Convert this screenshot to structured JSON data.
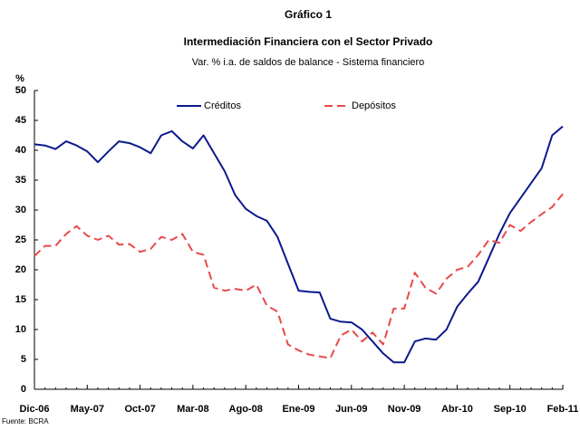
{
  "chart_data": {
    "type": "line",
    "title": "Gráfico 1",
    "subtitle": "Intermediación Financiera con el Sector Privado",
    "note": "Var. % i.a. de saldos de balance - Sistema financiero",
    "y_label": "%",
    "source": "Fuente: BCRA",
    "categories": [
      "Dic-06",
      null,
      null,
      null,
      null,
      "May-07",
      null,
      null,
      null,
      null,
      "Oct-07",
      null,
      null,
      null,
      null,
      "Mar-08",
      null,
      null,
      null,
      null,
      "Ago-08",
      null,
      null,
      null,
      null,
      "Ene-09",
      null,
      null,
      null,
      null,
      "Jun-09",
      null,
      null,
      null,
      null,
      "Nov-09",
      null,
      null,
      null,
      null,
      "Abr-10",
      null,
      null,
      null,
      null,
      "Sep-10",
      null,
      null,
      null,
      null,
      "Feb-11"
    ],
    "series": [
      {
        "name": "Créditos",
        "color": "#0a1a8c",
        "style": "solid",
        "values": [
          41,
          40.8,
          40.2,
          41.5,
          40.8,
          39.8,
          38,
          39.8,
          41.5,
          41.2,
          40.5,
          39.5,
          42.5,
          43.2,
          41.5,
          40.3,
          42.5,
          39.5,
          36.5,
          32.5,
          30.2,
          29,
          28.2,
          25.5,
          21,
          16.5,
          16.3,
          16.2,
          11.8,
          11.3,
          11.2,
          10,
          8,
          6,
          4.5,
          4.5,
          8,
          8.5,
          8.3,
          10,
          13.8,
          16,
          18,
          22,
          26,
          29.5,
          32,
          34.5,
          37,
          42.5,
          44
        ]
      },
      {
        "name": "Depósitos",
        "color": "#e8494a",
        "style": "dashed",
        "values": [
          22.3,
          24,
          24,
          26,
          27.3,
          25.7,
          25,
          25.7,
          24.2,
          24.3,
          23,
          23.5,
          25.5,
          25,
          26,
          23,
          22.5,
          17,
          16.5,
          16.8,
          16.5,
          17.5,
          14,
          13,
          7.5,
          6.5,
          5.8,
          5.5,
          5.2,
          9,
          10,
          8,
          9.5,
          7.5,
          13.5,
          13.5,
          19.5,
          17,
          16,
          18.5,
          20,
          20.5,
          22.5,
          25,
          24.5,
          27.5,
          26.5,
          28,
          29.3,
          30.5,
          32.7
        ]
      }
    ],
    "ylim": [
      0,
      50
    ],
    "yticks": [
      0,
      5,
      10,
      15,
      20,
      25,
      30,
      35,
      40,
      45,
      50
    ],
    "grid": false,
    "legend": "top"
  }
}
